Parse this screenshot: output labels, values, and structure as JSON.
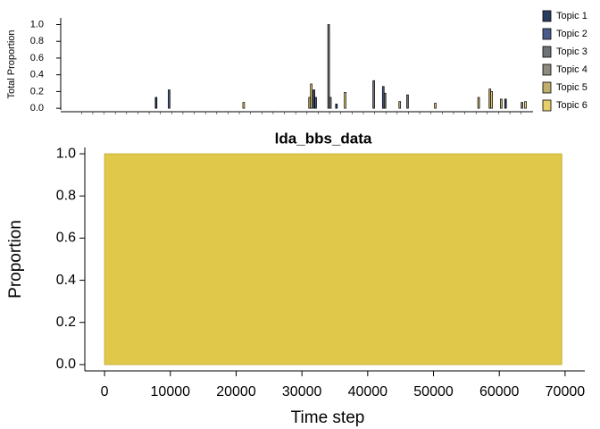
{
  "chart_data": [
    {
      "type": "bar",
      "ylabel": "Total Proportion",
      "categories": [
        null,
        null,
        null,
        null,
        null,
        null,
        null,
        null,
        null,
        null,
        null,
        null,
        null,
        null,
        null,
        null,
        null,
        null,
        null,
        null,
        null,
        null,
        null,
        null,
        null,
        null,
        null,
        null,
        null,
        null,
        null,
        null,
        null,
        null,
        null,
        null,
        null,
        null,
        null,
        null
      ],
      "series": [
        {
          "name": "Topic 1",
          "color": "#2b3d5e",
          "values": [
            0,
            0,
            0,
            0,
            0,
            0,
            0,
            0.13,
            0,
            0,
            0,
            0,
            0,
            0,
            0,
            0,
            0,
            0,
            0,
            0,
            0,
            0.22,
            0,
            0.05,
            0,
            0,
            0,
            0,
            0,
            0,
            0,
            0,
            0,
            0,
            0,
            0,
            0,
            0,
            0.11,
            0
          ]
        },
        {
          "name": "Topic 2",
          "color": "#4a5a8a",
          "values": [
            0,
            0,
            0,
            0,
            0,
            0,
            0,
            0,
            0.22,
            0,
            0,
            0,
            0,
            0,
            0,
            0,
            0,
            0,
            0,
            0,
            0,
            0.13,
            0,
            0,
            0,
            0,
            0,
            0.26,
            0,
            0,
            0,
            0,
            0,
            0,
            0,
            0,
            0,
            0,
            0,
            0
          ]
        },
        {
          "name": "Topic 3",
          "color": "#6e7378",
          "values": [
            0,
            0,
            0,
            0,
            0,
            0,
            0,
            0,
            0,
            0,
            0,
            0,
            0,
            0,
            0,
            0,
            0,
            0,
            0,
            0,
            0,
            0,
            1.0,
            0,
            0,
            0,
            0.33,
            0.18,
            0,
            0.16,
            0,
            0,
            0,
            0,
            0,
            0,
            0,
            0,
            0,
            0
          ]
        },
        {
          "name": "Topic 4",
          "color": "#8c8b7e",
          "values": [
            0,
            0,
            0,
            0,
            0,
            0,
            0,
            0,
            0,
            0,
            0,
            0,
            0,
            0,
            0,
            0,
            0,
            0,
            0,
            0,
            0,
            0,
            0.13,
            0,
            0,
            0,
            0,
            0,
            0,
            0,
            0,
            0,
            0,
            0,
            0,
            0,
            0,
            0,
            0,
            0.07
          ]
        },
        {
          "name": "Topic 5",
          "color": "#bfae6e",
          "values": [
            0,
            0,
            0,
            0,
            0,
            0,
            0,
            0,
            0,
            0,
            0,
            0,
            0,
            0,
            0,
            0,
            0,
            0,
            0,
            0,
            0.13,
            0,
            0,
            0,
            0,
            0,
            0,
            0,
            0.08,
            0,
            0,
            0,
            0,
            0,
            0,
            0.13,
            0.23,
            0.11,
            0,
            0
          ]
        },
        {
          "name": "Topic 6",
          "color": "#e6cf6a",
          "values": [
            0,
            0,
            0,
            0,
            0,
            0,
            0,
            0,
            0,
            0,
            0,
            0,
            0,
            0,
            0.07,
            0,
            0,
            0,
            0,
            0,
            0.29,
            0,
            0,
            0.19,
            0,
            0,
            0,
            0,
            0,
            0,
            0,
            0.06,
            0,
            0,
            0,
            0,
            0.2,
            0,
            0,
            0.08
          ]
        }
      ],
      "ylim": [
        -0.02,
        1.08
      ],
      "yticks": [
        {
          "value": 0,
          "label": "0.0"
        },
        0.2,
        0.4,
        0.6,
        0.8,
        {
          "value": 1,
          "label": "1.0"
        }
      ],
      "legend": "right"
    },
    {
      "type": "area",
      "title": "lda_bbs_data",
      "xlabel": "Time step",
      "ylabel": "Proportion",
      "x": [
        0,
        69500
      ],
      "values": [
        1,
        1
      ],
      "color": "#e0c84a",
      "xlim": [
        -3000,
        73000
      ],
      "ylim": [
        -0.03,
        1.03
      ],
      "xticks": [
        0,
        10000,
        20000,
        30000,
        40000,
        50000,
        60000,
        70000
      ],
      "yticks": [
        {
          "value": 0,
          "label": "0.0"
        },
        0.2,
        0.4,
        0.6,
        0.8,
        {
          "value": 1,
          "label": "1.0"
        }
      ]
    }
  ]
}
